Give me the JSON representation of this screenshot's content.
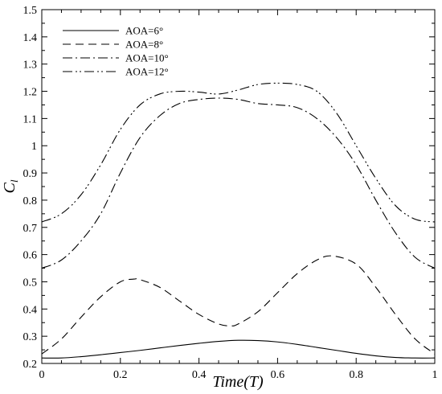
{
  "chart_data": {
    "type": "line",
    "xlabel": "Time(T)",
    "ylabel": {
      "main": "C",
      "subscript": "l"
    },
    "xlim": [
      0,
      1
    ],
    "ylim": [
      0.2,
      1.5
    ],
    "xticks": [
      "0",
      "0.2",
      "0.4",
      "0.6",
      "0.8",
      "1"
    ],
    "yticks": [
      "0.2",
      "0.3",
      "0.4",
      "0.5",
      "0.6",
      "0.7",
      "0.8",
      "0.9",
      "1",
      "1.1",
      "1.2",
      "1.3",
      "1.4",
      "1.5"
    ],
    "grid": false,
    "legend_position": "top-left",
    "series": [
      {
        "name": "AOA=6°",
        "dash": "solid",
        "x": [
          0,
          0.05,
          0.1,
          0.15,
          0.2,
          0.25,
          0.3,
          0.35,
          0.4,
          0.45,
          0.5,
          0.55,
          0.6,
          0.65,
          0.7,
          0.75,
          0.8,
          0.85,
          0.9,
          0.95,
          1.0
        ],
        "y": [
          0.22,
          0.22,
          0.225,
          0.232,
          0.24,
          0.248,
          0.257,
          0.266,
          0.274,
          0.281,
          0.285,
          0.284,
          0.279,
          0.27,
          0.259,
          0.248,
          0.237,
          0.228,
          0.222,
          0.22,
          0.22
        ]
      },
      {
        "name": "AOA=8°",
        "dash": "dashed",
        "x": [
          0,
          0.05,
          0.1,
          0.15,
          0.2,
          0.235,
          0.25,
          0.3,
          0.35,
          0.4,
          0.45,
          0.48,
          0.5,
          0.55,
          0.6,
          0.65,
          0.7,
          0.74,
          0.8,
          0.85,
          0.9,
          0.95,
          1.0
        ],
        "y": [
          0.235,
          0.29,
          0.37,
          0.445,
          0.5,
          0.51,
          0.508,
          0.48,
          0.43,
          0.38,
          0.345,
          0.338,
          0.345,
          0.39,
          0.46,
          0.53,
          0.58,
          0.595,
          0.565,
          0.48,
          0.38,
          0.29,
          0.235
        ]
      },
      {
        "name": "AOA=10°",
        "dash": "dashdot",
        "x": [
          0,
          0.05,
          0.1,
          0.15,
          0.2,
          0.25,
          0.3,
          0.35,
          0.4,
          0.45,
          0.5,
          0.55,
          0.6,
          0.65,
          0.7,
          0.75,
          0.8,
          0.85,
          0.9,
          0.95,
          1.0
        ],
        "y": [
          0.55,
          0.58,
          0.65,
          0.75,
          0.9,
          1.03,
          1.11,
          1.155,
          1.17,
          1.175,
          1.17,
          1.155,
          1.15,
          1.14,
          1.1,
          1.03,
          0.93,
          0.8,
          0.68,
          0.59,
          0.55
        ]
      },
      {
        "name": "AOA=12°",
        "dash": "dashdotdot",
        "x": [
          0,
          0.05,
          0.1,
          0.15,
          0.2,
          0.25,
          0.3,
          0.35,
          0.4,
          0.45,
          0.5,
          0.55,
          0.6,
          0.65,
          0.7,
          0.75,
          0.8,
          0.85,
          0.9,
          0.95,
          1.0
        ],
        "y": [
          0.72,
          0.75,
          0.82,
          0.93,
          1.06,
          1.15,
          1.19,
          1.2,
          1.197,
          1.19,
          1.205,
          1.225,
          1.23,
          1.225,
          1.2,
          1.12,
          1.0,
          0.88,
          0.78,
          0.73,
          0.72
        ]
      }
    ]
  }
}
